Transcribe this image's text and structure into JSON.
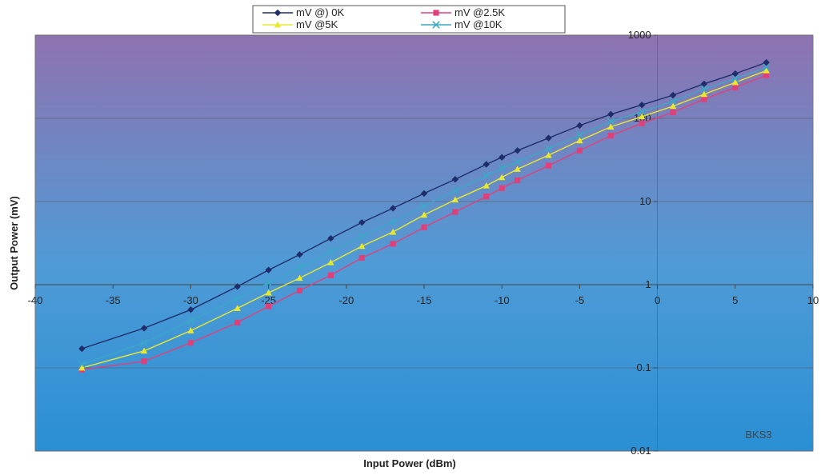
{
  "chart_data": {
    "type": "line",
    "title": "",
    "xlabel": "Input Power (dBm)",
    "ylabel": "Output Power (mV)",
    "xlim": [
      -40,
      10
    ],
    "ylim": [
      0.01,
      1000
    ],
    "y_scale": "log",
    "x_ticks": [
      -40,
      -35,
      -30,
      -25,
      -20,
      -15,
      -10,
      -5,
      0,
      5,
      10
    ],
    "y_ticks": [
      0.01,
      0.1,
      1,
      10,
      100,
      1000
    ],
    "y_tick_labels": [
      "0.01",
      "0.1",
      "1",
      "10",
      "100",
      "1000"
    ],
    "grid": true,
    "legend_position": "top",
    "annotation": "BKS3",
    "background_gradient": [
      "#8f72b0",
      "#2a8fd4"
    ],
    "series": [
      {
        "name": "mV @) 0K",
        "color": "#1f2d6b",
        "marker": "diamond",
        "x": [
          -37,
          -33,
          -30,
          -27,
          -25,
          -23,
          -21,
          -19,
          -17,
          -15,
          -13,
          -11,
          -10,
          -9,
          -7,
          -5,
          -3,
          -1,
          1,
          3,
          5,
          7
        ],
        "y": [
          0.17,
          0.3,
          0.5,
          0.95,
          1.5,
          2.3,
          3.6,
          5.6,
          8.3,
          12.5,
          18.5,
          28,
          34,
          41,
          58,
          82,
          112,
          145,
          190,
          260,
          345,
          470
        ]
      },
      {
        "name": "mV @2.5K",
        "color": "#e0407a",
        "marker": "square",
        "x": [
          -37,
          -33,
          -30,
          -27,
          -25,
          -23,
          -21,
          -19,
          -17,
          -15,
          -13,
          -11,
          -10,
          -9,
          -7,
          -5,
          -3,
          -1,
          1,
          3,
          5,
          7
        ],
        "y": [
          0.095,
          0.12,
          0.2,
          0.35,
          0.55,
          0.85,
          1.3,
          2.1,
          3.1,
          4.9,
          7.5,
          11.5,
          14.5,
          18,
          27,
          41,
          62,
          87,
          118,
          170,
          235,
          330
        ]
      },
      {
        "name": "mV @5K",
        "color": "#e8e830",
        "marker": "triangle",
        "x": [
          -37,
          -33,
          -30,
          -27,
          -25,
          -23,
          -21,
          -19,
          -17,
          -15,
          -13,
          -11,
          -10,
          -9,
          -7,
          -5,
          -3,
          -1,
          1,
          3,
          5,
          7
        ],
        "y": [
          0.1,
          0.16,
          0.28,
          0.52,
          0.8,
          1.2,
          1.85,
          2.9,
          4.3,
          6.9,
          10.5,
          15.5,
          19.5,
          24.5,
          36,
          54,
          79,
          105,
          140,
          195,
          270,
          375
        ]
      },
      {
        "name": "mV @10K",
        "color": "#3aa8c8",
        "marker": "x",
        "x": [
          -37,
          -33,
          -30,
          -27,
          -25,
          -23,
          -21,
          -19,
          -17,
          -15,
          -13,
          -11,
          -10,
          -9,
          -7,
          -5,
          -3,
          -1,
          1,
          3,
          5,
          7
        ],
        "y": [
          0.11,
          0.2,
          0.37,
          0.68,
          1.05,
          1.6,
          2.5,
          3.8,
          5.7,
          8.8,
          13.5,
          20.5,
          25,
          30,
          43,
          63,
          92,
          120,
          160,
          225,
          300,
          410
        ]
      }
    ]
  }
}
